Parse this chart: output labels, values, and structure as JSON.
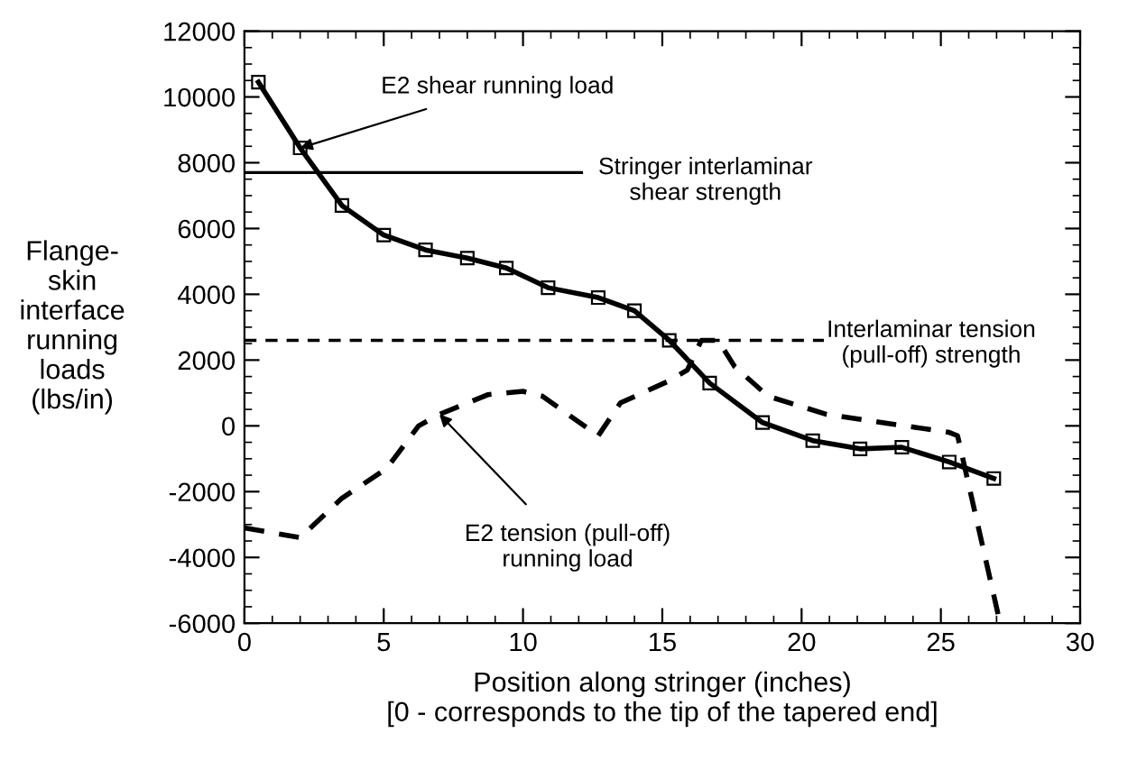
{
  "chart_data": {
    "type": "line",
    "xlabel": "Position along stringer (inches)\n[0 - corresponds to the tip of the tapered end]",
    "ylabel": "Flange-\nskin\ninterface\nrunning\nloads\n(lbs/in)",
    "xlim": [
      0,
      30
    ],
    "xticks": [
      0,
      5,
      10,
      15,
      20,
      25,
      30
    ],
    "ylim": [
      -6000,
      12000
    ],
    "yticks": [
      -6000,
      -4000,
      -2000,
      0,
      2000,
      4000,
      6000,
      8000,
      10000,
      12000
    ],
    "grid": false,
    "legend": false,
    "series": [
      {
        "color": "#000000",
        "marker": "square",
        "line_style": "solid",
        "x": [
          0.5,
          2,
          3.5,
          5,
          6.5,
          8,
          9.4,
          10.9,
          12.7,
          14,
          15.25,
          16.7,
          18.6,
          20.4,
          22.1,
          23.6,
          25.3,
          26.9
        ],
        "values": [
          10450,
          8450,
          6700,
          5800,
          5350,
          5100,
          4800,
          4200,
          3900,
          3500,
          2600,
          1300,
          100,
          -450,
          -700,
          -650,
          -1100,
          -1600
        ]
      },
      {
        "color": "#000000",
        "marker": "none",
        "line_style": "dashed",
        "x": [
          0,
          2,
          3.5,
          5.1,
          6.25,
          7,
          8.75,
          10,
          10.7,
          12.7,
          13.5,
          15.2,
          15.9,
          16.4,
          17,
          17.6,
          18.8,
          20.9,
          25.3,
          25.6,
          27.1
        ],
        "values": [
          -3100,
          -3400,
          -2200,
          -1300,
          0,
          350,
          950,
          1050,
          900,
          -300,
          700,
          1350,
          1700,
          2600,
          2600,
          1800,
          900,
          350,
          -200,
          -300,
          -5900
        ]
      },
      {
        "color": "#000000",
        "marker": "none",
        "line_style": "solid",
        "x": [
          0,
          12.1
        ],
        "values": [
          7700,
          7700
        ]
      },
      {
        "color": "#000000",
        "marker": "none",
        "line_style": "dashed",
        "x": [
          0,
          20.8
        ],
        "values": [
          2600,
          2600
        ]
      }
    ],
    "annotations": [
      {
        "text": "E2 shear running load",
        "x": 2,
        "y": 8450
      },
      "Stringer interlaminar\nshear strength",
      "Interlaminar tension\n(pull-off) strength",
      {
        "text": "E2 tension (pull-off)\nrunning load",
        "x": 7,
        "y": 350
      }
    ]
  }
}
